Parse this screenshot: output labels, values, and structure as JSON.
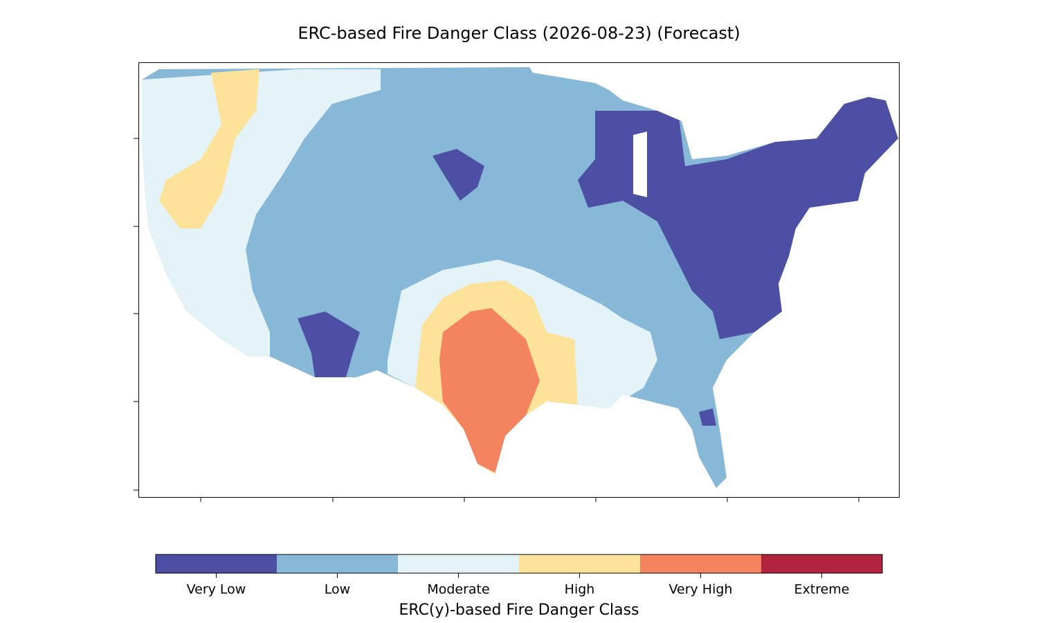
{
  "title": "ERC-based Fire Danger Class (2026-08-23) (Forecast)",
  "colorbar": {
    "label": "ERC(y)-based Fire Danger Class",
    "classes": [
      {
        "name": "Very Low",
        "color": "#4c4fa3"
      },
      {
        "name": "Low",
        "color": "#88b8d7"
      },
      {
        "name": "Moderate",
        "color": "#e3f3f8"
      },
      {
        "name": "High",
        "color": "#fde29a"
      },
      {
        "name": "Very High",
        "color": "#f48460"
      },
      {
        "name": "Extreme",
        "color": "#b1233f"
      }
    ]
  }
}
